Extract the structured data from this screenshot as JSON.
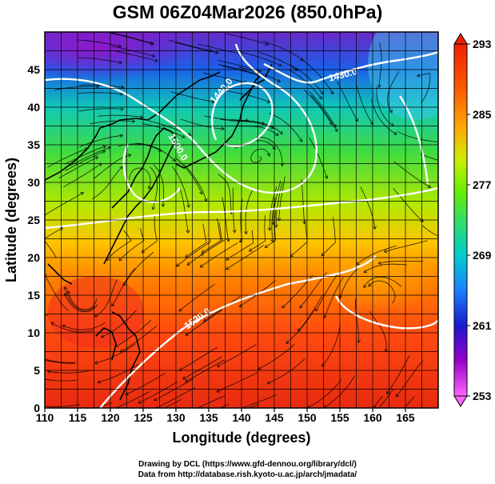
{
  "title": "GSM 06Z04Mar2026 (850.0hPa)",
  "map": {
    "xlabel": "Longitude (degrees)",
    "ylabel": "Latitude  (degrees)",
    "xlim": [
      110,
      170
    ],
    "ylim": [
      0,
      50
    ],
    "x_ticks": [
      "110",
      "115",
      "120",
      "125",
      "130",
      "135",
      "140",
      "145",
      "150",
      "155",
      "160",
      "165"
    ],
    "y_ticks": [
      "0",
      "5",
      "10",
      "15",
      "20",
      "25",
      "30",
      "35",
      "40",
      "45"
    ],
    "contour_labels": [
      "1440.0",
      "1480.0",
      "1500.0",
      "1520.0"
    ]
  },
  "colorbar": {
    "labels": [
      "293",
      "285",
      "277",
      "269",
      "261",
      "253"
    ],
    "colors": [
      "#ff66ff",
      "#9900cc",
      "#1a1acc",
      "#1a80ff",
      "#00cccc",
      "#33dd66",
      "#66ee00",
      "#ccee00",
      "#ffaa00",
      "#ff5500",
      "#ee2200"
    ]
  },
  "credits": {
    "line1": "Drawing by DCL (https://www.gfd-dennou.org/library/dcl/)",
    "line2": "Data from http://database.rish.kyoto-u.ac.jp/arch/jmadata/"
  }
}
